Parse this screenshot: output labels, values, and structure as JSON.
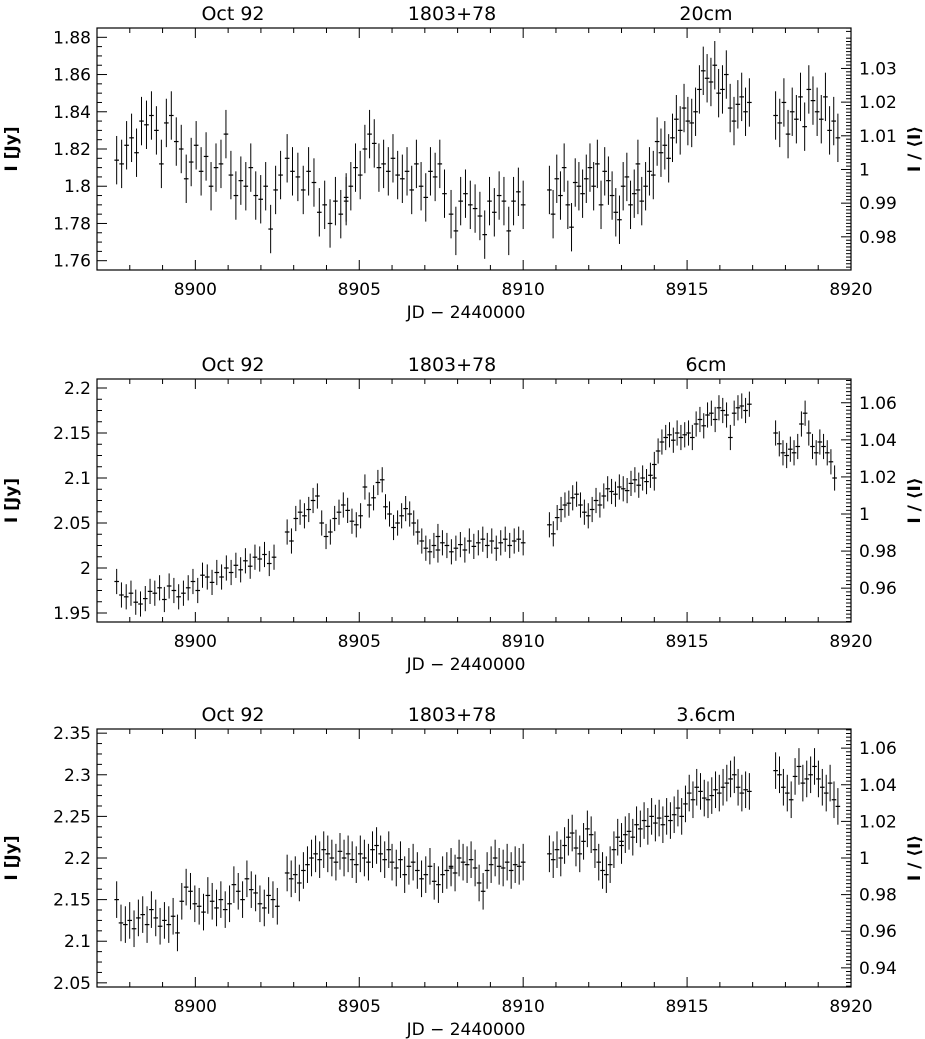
{
  "figure": {
    "xlabel": "JD − 2440000",
    "ylabel_left": "I [Jy]",
    "ylabel_right": "I / ⟨I⟩"
  },
  "chart_data": [
    {
      "type": "scatter",
      "header": {
        "date": "Oct 92",
        "source": "1803+78",
        "band": "20cm"
      },
      "xlabel": "JD − 2440000",
      "ylabel": "I [Jy]",
      "ylabel_right": "I / ⟨I⟩",
      "xlim": [
        8897,
        8920
      ],
      "ylim": [
        1.755,
        1.885
      ],
      "x_ticks": [
        8900,
        8905,
        8910,
        8915,
        8920
      ],
      "y_ticks": [
        1.76,
        1.78,
        1.8,
        1.82,
        1.84,
        1.86,
        1.88
      ],
      "y2_ticks": [
        0.98,
        0.99,
        1.0,
        1.01,
        1.02,
        1.03
      ],
      "y2_norm": 1.809,
      "error_bar": 0.013,
      "x_halfwidth": 0.07,
      "segments": [
        {
          "x_range": [
            8897.6,
            8902.6
          ],
          "y": [
            1.814,
            1.812,
            1.822,
            1.826,
            1.818,
            1.835,
            1.833,
            1.838,
            1.83,
            1.812,
            1.834,
            1.838,
            1.824,
            1.82,
            1.804,
            1.813,
            1.822,
            1.808,
            1.816,
            1.8,
            1.81,
            1.812,
            1.828,
            1.806,
            1.795,
            1.803,
            1.8,
            1.81,
            1.795,
            1.793,
            1.8,
            1.777,
            1.798,
            1.806
          ]
        },
        {
          "x_range": [
            8902.8,
            8904.6
          ],
          "y": [
            1.815,
            1.808,
            1.805,
            1.798,
            1.808,
            1.802,
            1.786,
            1.79,
            1.78,
            1.792,
            1.785,
            1.792
          ]
        },
        {
          "x_range": [
            8904.6,
            8907.6
          ],
          "y": [
            1.794,
            1.8,
            1.81,
            1.806,
            1.82,
            1.828,
            1.823,
            1.81,
            1.812,
            1.808,
            1.815,
            1.806,
            1.804,
            1.808,
            1.798,
            1.812,
            1.8,
            1.794,
            1.808,
            1.805,
            1.812,
            1.796
          ]
        },
        {
          "x_range": [
            8907.8,
            8910.0
          ],
          "y": [
            1.785,
            1.776,
            1.792,
            1.796,
            1.79,
            1.788,
            1.784,
            1.774,
            1.792,
            1.786,
            1.795,
            1.792,
            1.776,
            1.792,
            1.797,
            1.79
          ]
        },
        {
          "x_range": [
            8910.8,
            8913.5
          ],
          "y": [
            1.798,
            1.785,
            1.804,
            1.795,
            1.81,
            1.79,
            1.778,
            1.802,
            1.8,
            1.796,
            1.804,
            1.81,
            1.8,
            1.812,
            1.79,
            1.808,
            1.803,
            1.795,
            1.786,
            1.782,
            1.8,
            1.805,
            1.79,
            1.796,
            1.812
          ]
        },
        {
          "x_range": [
            8913.5,
            8916.9
          ],
          "y": [
            1.798,
            1.792,
            1.8,
            1.808,
            1.806,
            1.824,
            1.818,
            1.822,
            1.815,
            1.826,
            1.836,
            1.83,
            1.842,
            1.835,
            1.834,
            1.84,
            1.852,
            1.862,
            1.858,
            1.856,
            1.865,
            1.85,
            1.852,
            1.86,
            1.842,
            1.835,
            1.844,
            1.848,
            1.84,
            1.845
          ]
        },
        {
          "x_range": [
            8917.7,
            8919.6
          ],
          "y": [
            1.838,
            1.834,
            1.845,
            1.828,
            1.84,
            1.836,
            1.848,
            1.832,
            1.852,
            1.846,
            1.84,
            1.836,
            1.848,
            1.83,
            1.835,
            1.826
          ]
        }
      ]
    },
    {
      "type": "scatter",
      "header": {
        "date": "Oct 92",
        "source": "1803+78",
        "band": "6cm"
      },
      "xlabel": "JD − 2440000",
      "ylabel": "I [Jy]",
      "ylabel_right": "I / ⟨I⟩",
      "xlim": [
        8897,
        8920
      ],
      "ylim": [
        1.94,
        2.21
      ],
      "x_ticks": [
        8900,
        8905,
        8910,
        8915,
        8920
      ],
      "y_ticks": [
        1.95,
        2.0,
        2.05,
        2.1,
        2.15,
        2.2
      ],
      "y2_ticks": [
        0.96,
        0.98,
        1.0,
        1.02,
        1.04,
        1.06
      ],
      "y2_norm": 2.06,
      "error_bar": 0.014,
      "x_halfwidth": 0.07,
      "segments": [
        {
          "x_range": [
            8897.6,
            8902.4
          ],
          "y": [
            1.985,
            1.97,
            1.968,
            1.972,
            1.962,
            1.96,
            1.966,
            1.974,
            1.972,
            1.978,
            1.965,
            1.98,
            1.975,
            1.968,
            1.972,
            1.978,
            1.985,
            1.975,
            1.992,
            1.99,
            1.984,
            1.995,
            1.99,
            2.0,
            1.995,
            2.003,
            1.998,
            2.008,
            2.002,
            2.012,
            2.01,
            2.015,
            2.005,
            2.012
          ]
        },
        {
          "x_range": [
            8902.8,
            8905.7
          ],
          "y": [
            2.04,
            2.03,
            2.055,
            2.062,
            2.058,
            2.065,
            2.075,
            2.08,
            2.05,
            2.035,
            2.04,
            2.055,
            2.062,
            2.07,
            2.064,
            2.052,
            2.048,
            2.058,
            2.09,
            2.07,
            2.078,
            2.095,
            2.098
          ]
        },
        {
          "x_range": [
            8905.8,
            8907.4
          ],
          "y": [
            2.068,
            2.06,
            2.045,
            2.05,
            2.058,
            2.066,
            2.06,
            2.05,
            2.04,
            2.03,
            2.022,
            2.018,
            2.025,
            2.02
          ]
        },
        {
          "x_range": [
            8907.4,
            8910.0
          ],
          "y": [
            2.035,
            2.028,
            2.025,
            2.018,
            2.022,
            2.026,
            2.02,
            2.03,
            2.024,
            2.028,
            2.032,
            2.025,
            2.03,
            2.022,
            2.028,
            2.032,
            2.025,
            2.03,
            2.032,
            2.028
          ]
        },
        {
          "x_range": [
            8910.8,
            8914.0
          ],
          "y": [
            2.048,
            2.038,
            2.056,
            2.065,
            2.07,
            2.072,
            2.078,
            2.082,
            2.07,
            2.062,
            2.058,
            2.065,
            2.075,
            2.07,
            2.08,
            2.088,
            2.085,
            2.082,
            2.09,
            2.088,
            2.086,
            2.094,
            2.098,
            2.092,
            2.1,
            2.096,
            2.103,
            2.1
          ]
        },
        {
          "x_range": [
            8914.0,
            8916.9
          ],
          "y": [
            2.115,
            2.13,
            2.14,
            2.145,
            2.148,
            2.142,
            2.15,
            2.145,
            2.148,
            2.15,
            2.145,
            2.16,
            2.165,
            2.158,
            2.17,
            2.172,
            2.165,
            2.178,
            2.175,
            2.17,
            2.145,
            2.172,
            2.178,
            2.18,
            2.175,
            2.182
          ]
        },
        {
          "x_range": [
            8917.7,
            8919.5
          ],
          "y": [
            2.15,
            2.138,
            2.128,
            2.125,
            2.132,
            2.128,
            2.135,
            2.16,
            2.172,
            2.15,
            2.135,
            2.128,
            2.14,
            2.135,
            2.128,
            2.118,
            2.1
          ]
        }
      ]
    },
    {
      "type": "scatter",
      "header": {
        "date": "Oct 92",
        "source": "1803+78",
        "band": "3.6cm"
      },
      "xlabel": "JD − 2440000",
      "ylabel": "I [Jy]",
      "ylabel_right": "I / ⟨I⟩",
      "xlim": [
        8897,
        8920
      ],
      "ylim": [
        2.045,
        2.355
      ],
      "x_ticks": [
        8900,
        8905,
        8910,
        8915,
        8920
      ],
      "y_ticks": [
        2.05,
        2.1,
        2.15,
        2.2,
        2.25,
        2.3,
        2.35
      ],
      "y2_ticks": [
        0.94,
        0.96,
        0.98,
        1.0,
        1.02,
        1.04,
        1.06
      ],
      "y2_norm": 2.2,
      "error_bar": 0.022,
      "x_halfwidth": 0.07,
      "segments": [
        {
          "x_range": [
            8897.6,
            8902.5
          ],
          "y": [
            2.15,
            2.122,
            2.12,
            2.125,
            2.115,
            2.128,
            2.132,
            2.12,
            2.138,
            2.128,
            2.118,
            2.125,
            2.12,
            2.13,
            2.11,
            2.148,
            2.165,
            2.16,
            2.145,
            2.142,
            2.135,
            2.155,
            2.148,
            2.14,
            2.15,
            2.138,
            2.145,
            2.168,
            2.16,
            2.15,
            2.175,
            2.162,
            2.158,
            2.145,
            2.14,
            2.155,
            2.15,
            2.142
          ]
        },
        {
          "x_range": [
            8902.8,
            8905.9
          ],
          "y": [
            2.182,
            2.175,
            2.18,
            2.17,
            2.185,
            2.192,
            2.2,
            2.205,
            2.198,
            2.21,
            2.205,
            2.2,
            2.195,
            2.208,
            2.2,
            2.205,
            2.198,
            2.192,
            2.205,
            2.2,
            2.195,
            2.21,
            2.215,
            2.205,
            2.198,
            2.21
          ]
        },
        {
          "x_range": [
            8906.0,
            8907.8
          ],
          "y": [
            2.195,
            2.188,
            2.198,
            2.18,
            2.19,
            2.195,
            2.185,
            2.175,
            2.18,
            2.19,
            2.172,
            2.168,
            2.18,
            2.185,
            2.188
          ]
        },
        {
          "x_range": [
            8907.8,
            8910.0
          ],
          "y": [
            2.19,
            2.182,
            2.2,
            2.195,
            2.192,
            2.198,
            2.188,
            2.17,
            2.16,
            2.185,
            2.192,
            2.2,
            2.19,
            2.188,
            2.195,
            2.185,
            2.192,
            2.19,
            2.195
          ]
        },
        {
          "x_range": [
            8910.8,
            8913.0
          ],
          "y": [
            2.205,
            2.198,
            2.21,
            2.2,
            2.215,
            2.225,
            2.23,
            2.212,
            2.205,
            2.22,
            2.235,
            2.228,
            2.21,
            2.195,
            2.185,
            2.18,
            2.192,
            2.21,
            2.225,
            2.22
          ]
        },
        {
          "x_range": [
            8913.0,
            8916.9
          ],
          "y": [
            2.215,
            2.228,
            2.232,
            2.225,
            2.24,
            2.235,
            2.245,
            2.238,
            2.25,
            2.242,
            2.248,
            2.24,
            2.25,
            2.245,
            2.252,
            2.26,
            2.25,
            2.265,
            2.278,
            2.27,
            2.285,
            2.28,
            2.272,
            2.27,
            2.275,
            2.282,
            2.278,
            2.285,
            2.29,
            2.295,
            2.3,
            2.285,
            2.278,
            2.282,
            2.28
          ]
        },
        {
          "x_range": [
            8917.7,
            8919.6
          ],
          "y": [
            2.305,
            2.3,
            2.285,
            2.278,
            2.27,
            2.298,
            2.31,
            2.29,
            2.295,
            2.3,
            2.31,
            2.295,
            2.285,
            2.278,
            2.29,
            2.27,
            2.262
          ]
        }
      ]
    }
  ]
}
